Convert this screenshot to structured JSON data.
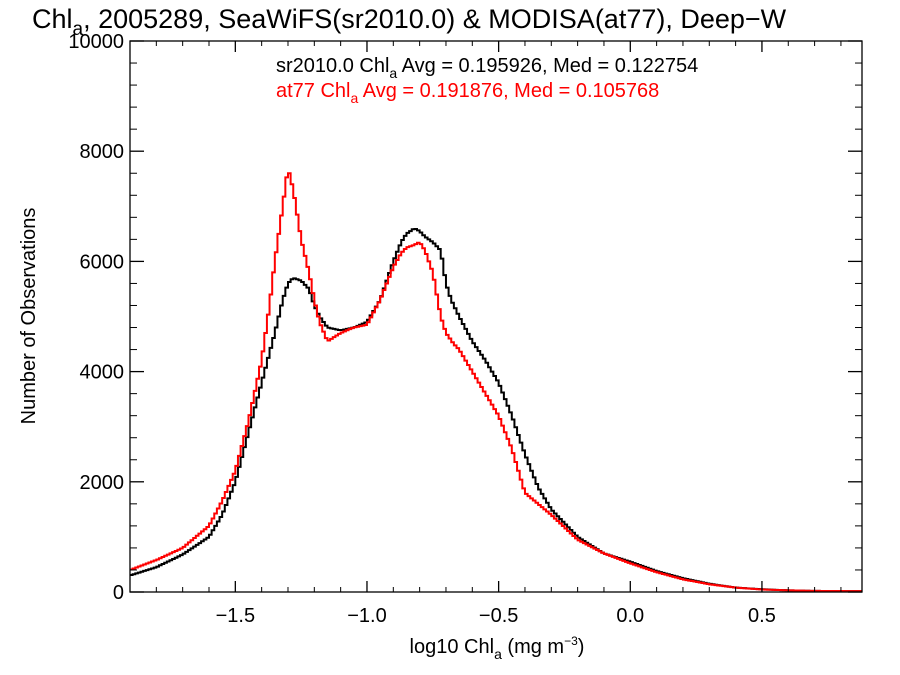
{
  "chart_data": {
    "type": "line",
    "title": {
      "prefix": "Chl",
      "sub": "a",
      "rest": ", 2005289, SeaWiFS(sr2010.0) & MODISA(at77), Deep−W"
    },
    "xlabel": {
      "prefix": "log10 Chl",
      "sub": "a",
      "mid": " (mg m",
      "sup": "−3",
      "end": ")"
    },
    "ylabel": "Number of Observations",
    "xlim": [
      -1.9,
      0.88
    ],
    "ylim": [
      0,
      10000
    ],
    "x_ticks": [
      {
        "value": -1.5,
        "label": "−1.5"
      },
      {
        "value": -1.0,
        "label": "−1.0"
      },
      {
        "value": -0.5,
        "label": "−0.5"
      },
      {
        "value": 0.0,
        "label": "0.0"
      },
      {
        "value": 0.5,
        "label": "0.5"
      }
    ],
    "y_ticks": [
      {
        "value": 0,
        "label": "0"
      },
      {
        "value": 2000,
        "label": "2000"
      },
      {
        "value": 4000,
        "label": "4000"
      },
      {
        "value": 6000,
        "label": "6000"
      },
      {
        "value": 8000,
        "label": "8000"
      },
      {
        "value": 10000,
        "label": "10000"
      }
    ],
    "legend": [
      {
        "pre": "sr2010.0 Chl",
        "sub": "a",
        "post": " Avg = 0.195926, Med = 0.122754",
        "color": "#000000"
      },
      {
        "pre": "at77 Chl",
        "sub": "a",
        "post": " Avg = 0.191876, Med = 0.105768",
        "color": "#ff0000"
      }
    ],
    "series": [
      {
        "color": "#000000",
        "x": [
          -1.9,
          -1.8,
          -1.7,
          -1.6,
          -1.55,
          -1.5,
          -1.45,
          -1.4,
          -1.35,
          -1.32,
          -1.3,
          -1.28,
          -1.25,
          -1.22,
          -1.2,
          -1.18,
          -1.15,
          -1.1,
          -1.05,
          -1.0,
          -0.95,
          -0.9,
          -0.87,
          -0.85,
          -0.82,
          -0.8,
          -0.78,
          -0.75,
          -0.72,
          -0.7,
          -0.68,
          -0.65,
          -0.6,
          -0.55,
          -0.5,
          -0.45,
          -0.4,
          -0.35,
          -0.3,
          -0.2,
          -0.1,
          0.0,
          0.1,
          0.2,
          0.3,
          0.4,
          0.5,
          0.6,
          0.7,
          0.88
        ],
        "y": [
          300,
          450,
          680,
          1000,
          1400,
          2000,
          2900,
          3800,
          4700,
          5300,
          5600,
          5700,
          5650,
          5500,
          5200,
          5000,
          4800,
          4750,
          4800,
          4900,
          5300,
          6000,
          6350,
          6500,
          6600,
          6550,
          6450,
          6350,
          6200,
          5600,
          5300,
          5000,
          4550,
          4200,
          3800,
          3200,
          2500,
          1900,
          1500,
          1000,
          700,
          550,
          380,
          250,
          150,
          80,
          50,
          30,
          20,
          15
        ]
      },
      {
        "color": "#ff0000",
        "x": [
          -1.9,
          -1.8,
          -1.7,
          -1.6,
          -1.55,
          -1.5,
          -1.45,
          -1.4,
          -1.37,
          -1.35,
          -1.32,
          -1.3,
          -1.28,
          -1.25,
          -1.22,
          -1.2,
          -1.18,
          -1.15,
          -1.1,
          -1.05,
          -1.0,
          -0.95,
          -0.9,
          -0.87,
          -0.85,
          -0.82,
          -0.8,
          -0.78,
          -0.75,
          -0.72,
          -0.7,
          -0.67,
          -0.65,
          -0.6,
          -0.55,
          -0.5,
          -0.45,
          -0.4,
          -0.35,
          -0.3,
          -0.2,
          -0.1,
          0.0,
          0.1,
          0.2,
          0.3,
          0.4,
          0.5,
          0.6,
          0.7,
          0.88
        ],
        "y": [
          400,
          580,
          800,
          1200,
          1650,
          2200,
          3100,
          4200,
          5200,
          6000,
          7000,
          7700,
          7300,
          6400,
          5800,
          5300,
          4900,
          4550,
          4700,
          4800,
          4850,
          5300,
          5900,
          6150,
          6250,
          6300,
          6350,
          6200,
          5800,
          5000,
          4700,
          4500,
          4400,
          4000,
          3600,
          3200,
          2600,
          1800,
          1600,
          1400,
          950,
          700,
          520,
          360,
          230,
          140,
          80,
          45,
          30,
          20,
          15
        ]
      }
    ]
  }
}
